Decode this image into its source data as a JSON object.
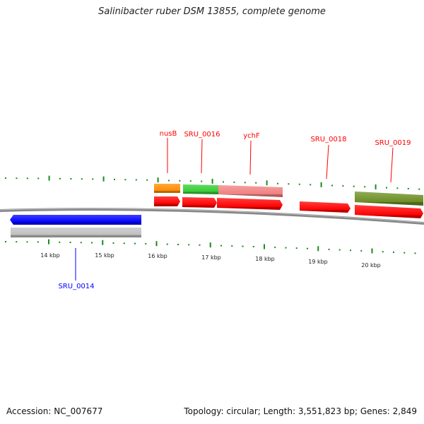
{
  "title": "Salinibacter ruber DSM 13855, complete genome",
  "accession": "Accession: NC_007677",
  "summary": "Topology: circular; Length: 3,551,823 bp; Genes: 2,849",
  "colors": {
    "tick": "#1a8a1a",
    "backbone": "#888888",
    "forward": "#ff0000",
    "reverse": "#0000ff"
  },
  "kbp_labels": [
    "14 kbp",
    "15 kbp",
    "16 kbp",
    "17 kbp",
    "18 kbp",
    "19 kbp",
    "20 kbp"
  ],
  "gene_labels": [
    {
      "name": "nusB",
      "strand": "forward"
    },
    {
      "name": "SRU_0016",
      "strand": "forward"
    },
    {
      "name": "ychF",
      "strand": "forward"
    },
    {
      "name": "SRU_0018",
      "strand": "forward"
    },
    {
      "name": "SRU_0019",
      "strand": "forward"
    },
    {
      "name": "SRU_0014",
      "strand": "reverse"
    }
  ]
}
